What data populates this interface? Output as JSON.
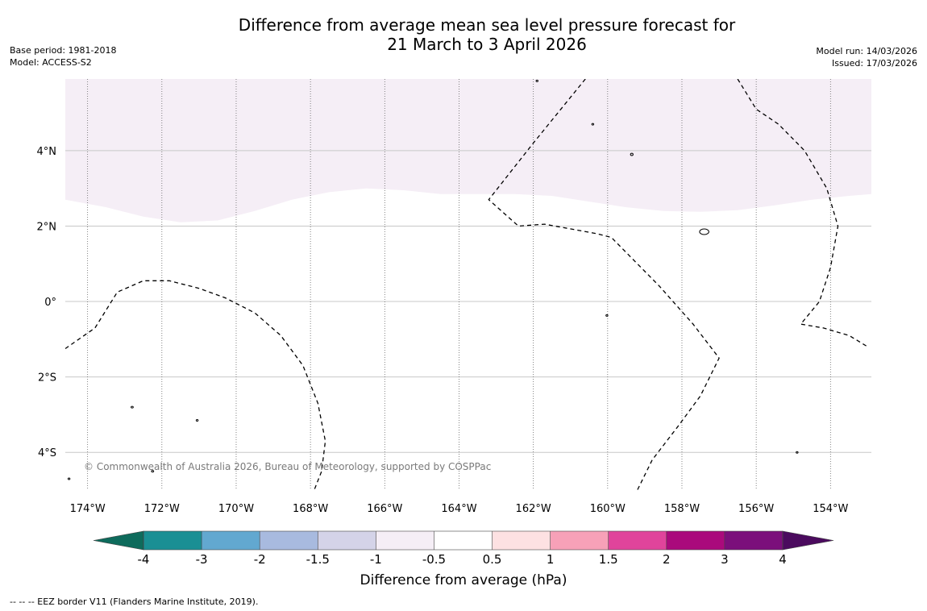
{
  "title": {
    "line1": "Difference from average mean sea level pressure forecast for",
    "line2": "21 March to 3 April 2026"
  },
  "meta": {
    "base_period": "Base period: 1981-2018",
    "model": "Model: ACCESS-S2",
    "model_run": "Model run: 14/03/2026",
    "issued": "Issued: 17/03/2026"
  },
  "map": {
    "extent": {
      "lon_min": -174.6,
      "lon_max": -152.9,
      "lat_min": -5.0,
      "lat_max": 5.9
    },
    "lat_ticks": [
      {
        "value": 4,
        "label": "4°N"
      },
      {
        "value": 2,
        "label": "2°N"
      },
      {
        "value": 0,
        "label": "0°"
      },
      {
        "value": -2,
        "label": "2°S"
      },
      {
        "value": -4,
        "label": "4°S"
      }
    ],
    "lon_ticks": [
      {
        "value": -174,
        "label": "174°W"
      },
      {
        "value": -172,
        "label": "172°W"
      },
      {
        "value": -170,
        "label": "170°W"
      },
      {
        "value": -168,
        "label": "168°W"
      },
      {
        "value": -166,
        "label": "166°W"
      },
      {
        "value": -164,
        "label": "164°W"
      },
      {
        "value": -162,
        "label": "162°W"
      },
      {
        "value": -160,
        "label": "160°W"
      },
      {
        "value": -158,
        "label": "158°W"
      },
      {
        "value": -156,
        "label": "156°W"
      },
      {
        "value": -154,
        "label": "154°W"
      }
    ],
    "anomaly_region": {
      "category": "-1 to -0.5",
      "color": "#f5eef6",
      "southern_boundary": [
        [
          -174.6,
          2.7
        ],
        [
          -173.5,
          2.5
        ],
        [
          -172.5,
          2.25
        ],
        [
          -171.5,
          2.1
        ],
        [
          -170.5,
          2.15
        ],
        [
          -169.5,
          2.4
        ],
        [
          -168.5,
          2.7
        ],
        [
          -167.5,
          2.9
        ],
        [
          -166.5,
          3.0
        ],
        [
          -165.5,
          2.95
        ],
        [
          -164.5,
          2.85
        ],
        [
          -163.5,
          2.85
        ],
        [
          -162.5,
          2.85
        ],
        [
          -161.5,
          2.8
        ],
        [
          -160.5,
          2.65
        ],
        [
          -159.5,
          2.5
        ],
        [
          -158.5,
          2.4
        ],
        [
          -157.5,
          2.38
        ],
        [
          -156.5,
          2.42
        ],
        [
          -155.5,
          2.55
        ],
        [
          -154.5,
          2.7
        ],
        [
          -153.5,
          2.8
        ],
        [
          -152.9,
          2.85
        ]
      ]
    },
    "eez_borders": [
      [
        [
          -174.6,
          -1.25
        ],
        [
          -173.8,
          -0.7
        ],
        [
          -173.2,
          0.25
        ],
        [
          -172.5,
          0.55
        ],
        [
          -171.8,
          0.55
        ],
        [
          -171.0,
          0.35
        ],
        [
          -170.3,
          0.1
        ],
        [
          -169.5,
          -0.3
        ],
        [
          -168.8,
          -0.9
        ],
        [
          -168.2,
          -1.7
        ],
        [
          -167.8,
          -2.7
        ],
        [
          -167.6,
          -3.7
        ],
        [
          -167.7,
          -4.5
        ],
        [
          -167.9,
          -5.0
        ]
      ],
      [
        [
          -160.6,
          5.9
        ],
        [
          -162.0,
          4.2
        ],
        [
          -163.2,
          2.7
        ],
        [
          -162.4,
          2.0
        ],
        [
          -161.7,
          2.05
        ],
        [
          -160.3,
          1.8
        ],
        [
          -159.9,
          1.7
        ],
        [
          -158.6,
          0.4
        ],
        [
          -157.7,
          -0.6
        ],
        [
          -157.0,
          -1.5
        ],
        [
          -157.5,
          -2.5
        ],
        [
          -158.1,
          -3.3
        ],
        [
          -158.8,
          -4.2
        ],
        [
          -159.2,
          -5.0
        ]
      ],
      [
        [
          -156.5,
          5.9
        ],
        [
          -156.0,
          5.1
        ],
        [
          -155.4,
          4.7
        ],
        [
          -154.7,
          4.0
        ],
        [
          -154.1,
          3.0
        ],
        [
          -153.8,
          2.0
        ],
        [
          -154.0,
          0.9
        ],
        [
          -154.3,
          0.0
        ],
        [
          -154.8,
          -0.6
        ],
        [
          -154.2,
          -0.7
        ],
        [
          -153.5,
          -0.9
        ],
        [
          -153.0,
          -1.2
        ]
      ]
    ],
    "islands": [
      {
        "lon": -161.9,
        "lat": 5.85,
        "w": 0.04,
        "h": 0.03
      },
      {
        "lon": -160.4,
        "lat": 4.7,
        "w": 0.05,
        "h": 0.03
      },
      {
        "lon": -159.35,
        "lat": 3.9,
        "w": 0.07,
        "h": 0.06
      },
      {
        "lon": -157.4,
        "lat": 1.85,
        "w": 0.25,
        "h": 0.15
      },
      {
        "lon": -172.8,
        "lat": -2.8,
        "w": 0.06,
        "h": 0.04
      },
      {
        "lon": -171.05,
        "lat": -3.15,
        "w": 0.02,
        "h": 0.03
      },
      {
        "lon": -172.25,
        "lat": -4.5,
        "w": 0.06,
        "h": 0.03
      },
      {
        "lon": -160.02,
        "lat": -0.37,
        "w": 0.02,
        "h": 0.02
      },
      {
        "lon": -154.9,
        "lat": -4.0,
        "w": 0.05,
        "h": 0.04
      },
      {
        "lon": -174.5,
        "lat": -4.7,
        "w": 0.03,
        "h": 0.02
      }
    ],
    "copyright": "© Commonwealth of Australia 2026, Bureau of Meteorology, supported by COSPPac"
  },
  "colorbar": {
    "label": "Difference from average (hPa)",
    "ticks": [
      "-4",
      "-3",
      "-2",
      "-1.5",
      "-1",
      "-0.5",
      "0.5",
      "1",
      "1.5",
      "2",
      "3",
      "4"
    ],
    "colors": [
      "#1a8f94",
      "#62a8d0",
      "#a8badf",
      "#d4d3e8",
      "#f5eef6",
      "#ffffff",
      "#fde1e2",
      "#f7a1b8",
      "#e0449b",
      "#aa0a7c",
      "#7b0f7b"
    ],
    "extend_low_color": "#0e6b5c",
    "extend_high_color": "#4b0b5e"
  },
  "footnote": "-- -- -- EEZ border V11 (Flanders Marine Institute, 2019)."
}
